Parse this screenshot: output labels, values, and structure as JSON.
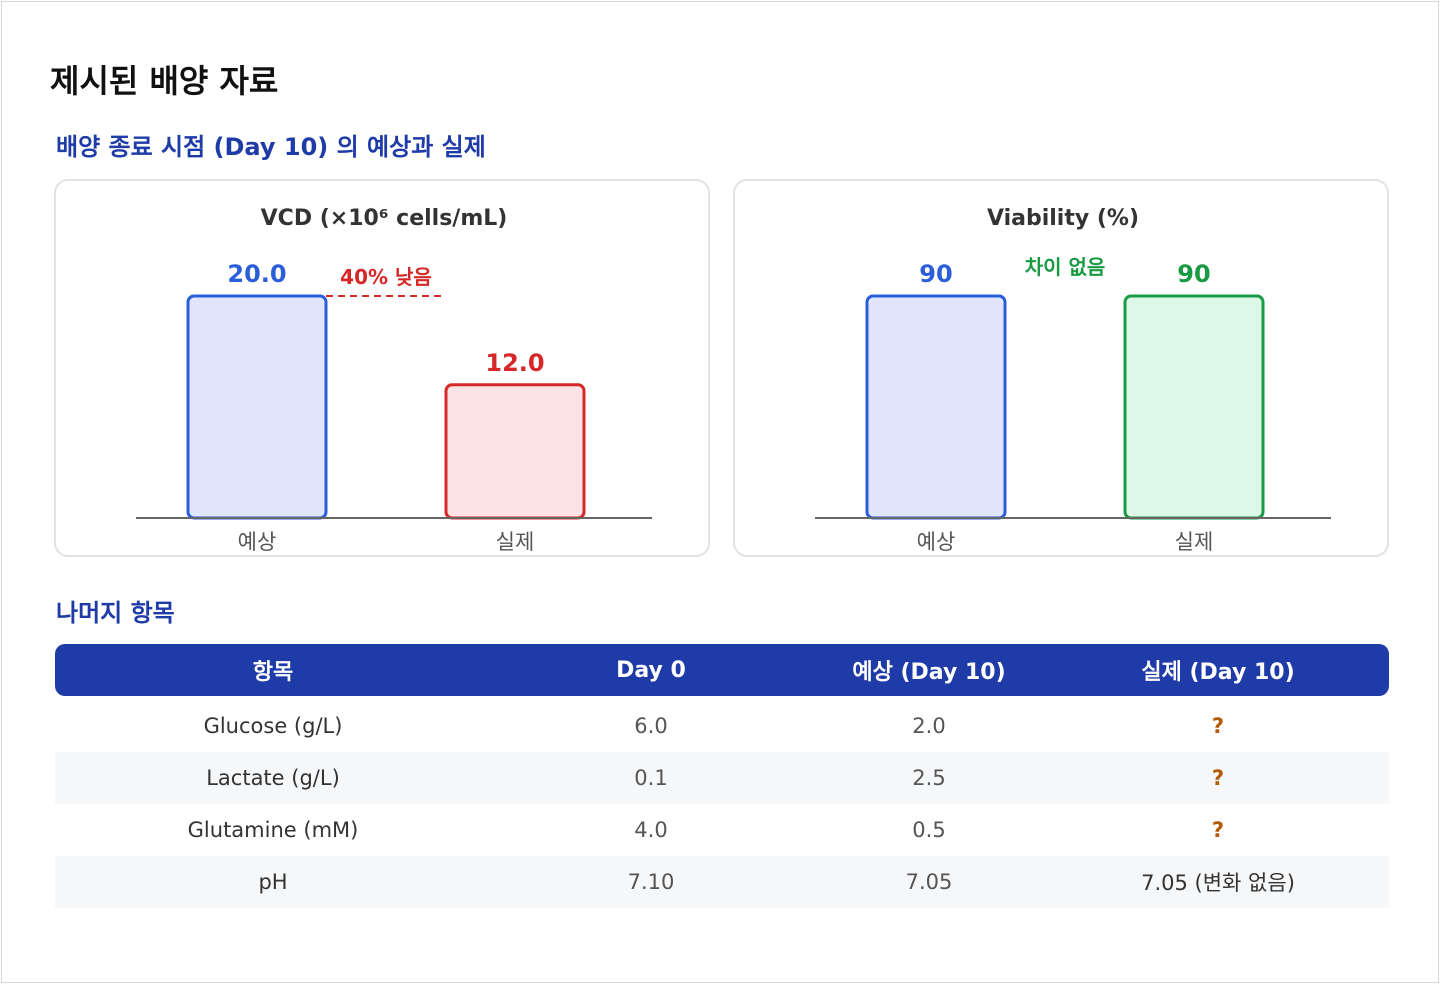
{
  "page_title": "제시된 배양 자료",
  "section1_title": "배양 종료 시점 (Day 10) 의 예상과 실제",
  "section2_title": "나머지 항목",
  "colors": {
    "expected": "#2b5fd9",
    "expected_fill": "#e1e6fc",
    "actual_low": "#d62828",
    "actual_low_fill": "#fde3e5",
    "actual_same": "#1a9a44",
    "actual_same_fill": "#dcf8e6",
    "accent": "#1f3ba8"
  },
  "chart_data": [
    {
      "type": "bar",
      "title": "VCD (×10⁶ cells/mL)",
      "categories": [
        "예상",
        "실제"
      ],
      "values": [
        20.0,
        12.0
      ],
      "value_labels": [
        "20.0",
        "12.0"
      ],
      "ylim": [
        0,
        20
      ],
      "annotation": "40% 낮음"
    },
    {
      "type": "bar",
      "title": "Viability (%)",
      "categories": [
        "예상",
        "실제"
      ],
      "values": [
        90,
        90
      ],
      "value_labels": [
        "90",
        "90"
      ],
      "ylim": [
        0,
        90
      ],
      "annotation": "차이 없음"
    }
  ],
  "table": {
    "headers": [
      "항목",
      "Day 0",
      "예상 (Day 10)",
      "실제 (Day 10)"
    ],
    "rows": [
      [
        "Glucose (g/L)",
        "6.0",
        "2.0",
        "?"
      ],
      [
        "Lactate (g/L)",
        "0.1",
        "2.5",
        "?"
      ],
      [
        "Glutamine (mM)",
        "4.0",
        "0.5",
        "?"
      ],
      [
        "pH",
        "7.10",
        "7.05",
        "7.05 (변화 없음)"
      ]
    ]
  }
}
